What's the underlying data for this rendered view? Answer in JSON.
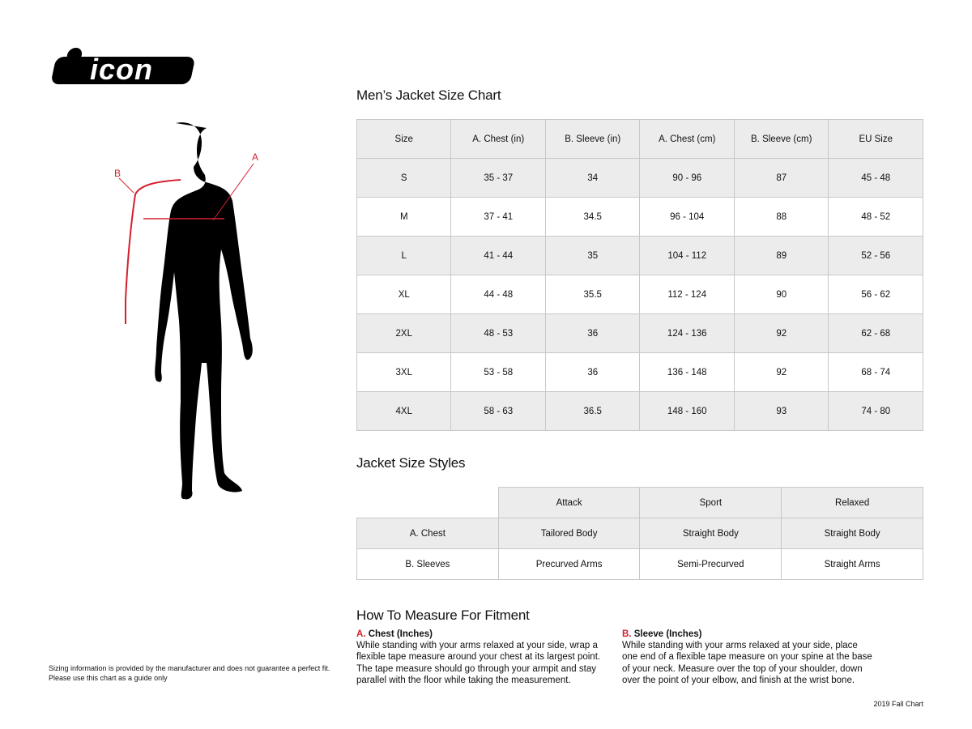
{
  "brand": {
    "logo_text": "icon"
  },
  "figure": {
    "label_a": "A",
    "label_b": "B",
    "accent": "#d4202c"
  },
  "size_chart": {
    "title": "Men’s Jacket Size Chart",
    "headers": [
      "Size",
      "A. Chest (in)",
      "B. Sleeve (in)",
      "A. Chest (cm)",
      "B. Sleeve (cm)",
      "EU Size"
    ],
    "rows": [
      [
        "S",
        "35 - 37",
        "34",
        "90 - 96",
        "87",
        "45 - 48"
      ],
      [
        "M",
        "37 - 41",
        "34.5",
        "96 - 104",
        "88",
        "48 - 52"
      ],
      [
        "L",
        "41 - 44",
        "35",
        "104 - 112",
        "89",
        "52 - 56"
      ],
      [
        "XL",
        "44 - 48",
        "35.5",
        "112 - 124",
        "90",
        "56 - 62"
      ],
      [
        "2XL",
        "48 - 53",
        "36",
        "124 - 136",
        "92",
        "62 - 68"
      ],
      [
        "3XL",
        "53 - 58",
        "36",
        "136 - 148",
        "92",
        "68 - 74"
      ],
      [
        "4XL",
        "58 - 63",
        "36.5",
        "148 - 160",
        "93",
        "74 - 80"
      ]
    ]
  },
  "styles": {
    "title": "Jacket Size Styles",
    "headers": [
      "Attack",
      "Sport",
      "Relaxed"
    ],
    "rows": [
      [
        "A. Chest",
        "Tailored Body",
        "Straight Body",
        "Straight Body"
      ],
      [
        "B. Sleeves",
        "Precurved Arms",
        "Semi-Precurved",
        "Straight Arms"
      ]
    ]
  },
  "how": {
    "title": "How To Measure For Fitment",
    "a_letter": "A.",
    "a_title": "Chest (Inches)",
    "a_text": "While standing with your arms relaxed at your side, wrap a flexible tape measure around your chest at its largest point. The tape measure should go through your armpit and stay parallel with the floor while taking the measurement.",
    "b_letter": "B.",
    "b_title": "Sleeve (Inches)",
    "b_text": "While standing with your arms relaxed at your side, place one end of a flexible tape measure on your spine at the base of your neck. Measure over the top of your shoulder, down over the point of your elbow, and finish at the wrist bone."
  },
  "disclaimer": {
    "line1": "Sizing information is provided by the manufacturer and does not guarantee a perfect fit.",
    "line2": "Please use this chart as a guide only"
  },
  "footer": "2019 Fall Chart"
}
